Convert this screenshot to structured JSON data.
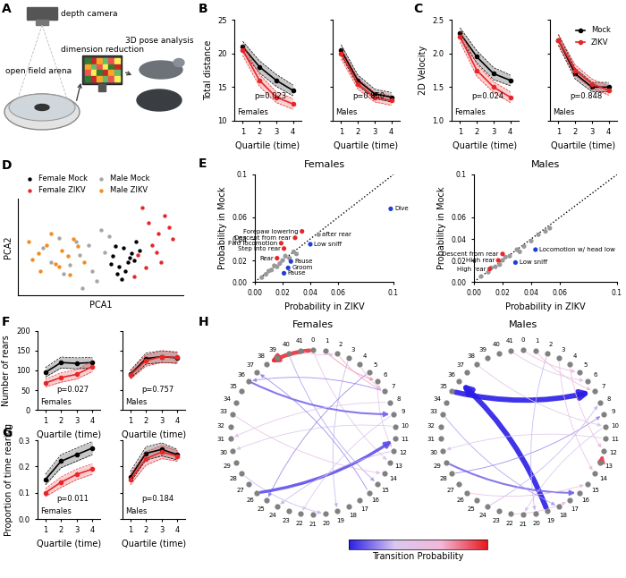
{
  "panel_labels": [
    "A",
    "B",
    "C",
    "D",
    "E",
    "F",
    "G",
    "H"
  ],
  "schematic": {
    "labels": [
      "depth camera",
      "open field arena",
      "dimension reduction",
      "3D pose analysis"
    ]
  },
  "chart_data": [
    {
      "type": "line",
      "ylabel": "Total distance",
      "xlabel": "Quartile (time)",
      "x": [
        1,
        2,
        3,
        4
      ],
      "xlim": [
        0.5,
        4.5
      ],
      "xticks": [
        1,
        2,
        3,
        4
      ],
      "ylim": [
        10,
        25
      ],
      "yticks": [
        10,
        15,
        20,
        25
      ],
      "group_label": "Females",
      "p_value": "p=0.023",
      "series": [
        {
          "color": "#000000",
          "marker": "o",
          "values": [
            21.0,
            18.0,
            16.0,
            14.5
          ],
          "errors": [
            0.8,
            0.9,
            0.9,
            0.8
          ]
        },
        {
          "color": "#e8262a",
          "marker": "o",
          "values": [
            20.5,
            16.0,
            13.5,
            12.5
          ],
          "errors": [
            0.8,
            0.9,
            0.8,
            0.8
          ]
        }
      ]
    },
    {
      "type": "line",
      "xlabel": "Quartile (time)",
      "x": [
        1,
        2,
        3,
        4
      ],
      "xlim": [
        0.5,
        4.5
      ],
      "xticks": [
        1,
        2,
        3,
        4
      ],
      "ylim": [
        10,
        25
      ],
      "yticks": [
        10,
        15,
        20,
        25
      ],
      "tick_labels": "x",
      "group_label": "Males",
      "p_value": "p=0.850",
      "series": [
        {
          "color": "#000000",
          "marker": "o",
          "values": [
            20.5,
            16.0,
            14.0,
            13.5
          ],
          "errors": [
            0.8,
            0.8,
            0.7,
            0.7
          ]
        },
        {
          "color": "#e8262a",
          "marker": "o",
          "values": [
            20.0,
            15.5,
            13.5,
            13.0
          ],
          "errors": [
            0.8,
            0.8,
            0.7,
            0.7
          ]
        }
      ]
    },
    {
      "type": "line",
      "ylabel": "2D Velocity",
      "xlabel": "Quartile (time)",
      "x": [
        1,
        2,
        3,
        4
      ],
      "xlim": [
        0.5,
        4.5
      ],
      "xticks": [
        1,
        2,
        3,
        4
      ],
      "ylim": [
        1.0,
        2.5
      ],
      "yticks": [
        1.0,
        1.5,
        2.0,
        2.5
      ],
      "group_label": "Females",
      "p_value": "p=0.024",
      "series": [
        {
          "color": "#000000",
          "marker": "o",
          "values": [
            2.3,
            1.95,
            1.7,
            1.6
          ],
          "errors": [
            0.08,
            0.09,
            0.09,
            0.08
          ]
        },
        {
          "color": "#e8262a",
          "marker": "o",
          "values": [
            2.25,
            1.75,
            1.5,
            1.35
          ],
          "errors": [
            0.08,
            0.09,
            0.08,
            0.08
          ]
        }
      ]
    },
    {
      "type": "line",
      "xlabel": "Quartile (time)",
      "x": [
        1,
        2,
        3,
        4
      ],
      "xlim": [
        0.5,
        4.5
      ],
      "xticks": [
        1,
        2,
        3,
        4
      ],
      "ylim": [
        1.0,
        2.5
      ],
      "yticks": [
        1.0,
        1.5,
        2.0,
        2.5
      ],
      "tick_labels": "x",
      "group_label": "Males",
      "p_value": "p=0.848",
      "legend": "upper right",
      "series": [
        {
          "name": "Mock",
          "color": "#000000",
          "marker": "o",
          "values": [
            2.2,
            1.7,
            1.5,
            1.5
          ],
          "errors": [
            0.08,
            0.08,
            0.07,
            0.07
          ]
        },
        {
          "name": "ZIKV",
          "color": "#e8262a",
          "marker": "o",
          "values": [
            2.2,
            1.75,
            1.55,
            1.45
          ],
          "errors": [
            0.08,
            0.08,
            0.07,
            0.07
          ]
        }
      ]
    },
    {
      "type": "scatter",
      "xlabel": "PCA1",
      "ylabel": "PCA2",
      "xlim": [
        -4,
        4
      ],
      "ylim": [
        -2.5,
        4.2
      ],
      "tick_labels": false,
      "legend": "lower left",
      "series": [
        {
          "name": "Female Mock",
          "color": "#000000",
          "marker": "o",
          "x": [
            0.6,
            0.9,
            1.1,
            1.3,
            0.8,
            1.5,
            1.0,
            1.7,
            0.7,
            1.2,
            1.4,
            0.5,
            1.9,
            1.6
          ],
          "y": [
            0.2,
            -0.5,
            0.8,
            -0.2,
            -1.0,
            0.4,
            -1.4,
            1.2,
            0.9,
            -0.8,
            0.1,
            -0.3,
            0.6,
            -0.1
          ]
        },
        {
          "name": "Female ZIKV",
          "color": "#e8262a",
          "marker": "o",
          "x": [
            2.0,
            2.3,
            2.8,
            3.1,
            2.5,
            1.8,
            3.3,
            2.2,
            2.7,
            3.5,
            1.6,
            2.9
          ],
          "y": [
            3.6,
            2.5,
            1.8,
            3.0,
            1.0,
            0.3,
            2.2,
            -0.6,
            0.5,
            1.4,
            -1.2,
            -0.2
          ]
        },
        {
          "name": "Male Mock",
          "color": "#a6a6a6",
          "marker": "o",
          "x": [
            -2.8,
            -2.0,
            -1.5,
            -1.0,
            -0.6,
            -0.2,
            0.2,
            -1.8,
            -0.9,
            0.4,
            -2.4,
            -1.2,
            -0.4,
            0.0
          ],
          "y": [
            0.8,
            1.5,
            -0.4,
            0.3,
            1.0,
            -1.5,
            0.5,
            -1.0,
            -2.0,
            1.6,
            -0.2,
            1.2,
            -0.8,
            2.0
          ]
        },
        {
          "name": "Male ZIKV",
          "color": "#f28c1e",
          "marker": "o",
          "x": [
            -3.5,
            -3.0,
            -2.6,
            -2.2,
            -1.9,
            -1.6,
            -1.3,
            -2.9,
            -2.0,
            -1.1,
            -3.3,
            -0.8,
            -2.4,
            -1.5
          ],
          "y": [
            1.2,
            0.4,
            1.0,
            -0.3,
            0.6,
            0.2,
            1.4,
            -0.8,
            -0.5,
            0.9,
            0.0,
            -0.2,
            1.8,
            -1.1
          ]
        }
      ]
    },
    {
      "type": "scatter",
      "title": "Females",
      "xlabel": "Probability in ZIKV",
      "ylabel": "Probability in Mock",
      "xlim": [
        0,
        0.1
      ],
      "ylim": [
        0,
        0.1
      ],
      "xticks": [
        {
          "value": 0,
          "label": "0.00"
        },
        0.02,
        0.04,
        0.06,
        0.1
      ],
      "yticks": [
        {
          "value": 0,
          "label": "0.00"
        },
        0.02,
        0.04,
        0.06,
        0.1
      ],
      "x": [
        0.005,
        0.008,
        0.01,
        0.012,
        0.014,
        0.016,
        0.018,
        0.02,
        0.022,
        0.025,
        0.028,
        0.03,
        0.046,
        0.034,
        0.029,
        0.019,
        0.021,
        0.016,
        0.04,
        0.026,
        0.024,
        0.021,
        0.098
      ],
      "y": [
        0.004,
        0.007,
        0.01,
        0.011,
        0.015,
        0.014,
        0.017,
        0.02,
        0.024,
        0.022,
        0.028,
        0.026,
        0.044,
        0.047,
        0.041,
        0.036,
        0.031,
        0.022,
        0.035,
        0.019,
        0.013,
        0.008,
        0.068
      ],
      "colors": [
        "#999999",
        "#999999",
        "#999999",
        "#999999",
        "#999999",
        "#999999",
        "#999999",
        "#999999",
        "#999999",
        "#999999",
        "#999999",
        "#999999",
        "#999999",
        "#e8262a",
        "#e8262a",
        "#e8262a",
        "#e8262a",
        "#e8262a",
        "#1f3fd8",
        "#1f3fd8",
        "#1f3fd8",
        "#1f3fd8",
        "#1f3fd8"
      ],
      "point_labels": [
        null,
        null,
        null,
        null,
        null,
        null,
        null,
        null,
        null,
        null,
        null,
        null,
        "after rear",
        "Forepaw lowering",
        "Descent from rear",
        "Fwd locomotion",
        "Step into rear",
        "Rear",
        "Low sniff",
        "Pause",
        "Groom",
        "Pause",
        "Dive"
      ]
    },
    {
      "type": "scatter",
      "title": "Males",
      "xlabel": "Probability in ZIKV",
      "ylabel": "Probability in Mock",
      "xlim": [
        0,
        0.1
      ],
      "ylim": [
        0,
        0.1
      ],
      "xticks": [
        {
          "value": 0,
          "label": "0.00"
        },
        0.02,
        0.04,
        0.06,
        0.1
      ],
      "yticks": [
        {
          "value": 0,
          "label": "0.00"
        },
        0.02,
        0.04,
        0.06,
        0.1
      ],
      "x": [
        0.005,
        0.01,
        0.012,
        0.015,
        0.02,
        0.022,
        0.025,
        0.03,
        0.032,
        0.035,
        0.04,
        0.045,
        0.05,
        0.053,
        0.018,
        0.02,
        0.017,
        0.011,
        0.043,
        0.029
      ],
      "y": [
        0.005,
        0.009,
        0.013,
        0.014,
        0.02,
        0.023,
        0.024,
        0.03,
        0.028,
        0.033,
        0.038,
        0.044,
        0.047,
        0.05,
        0.016,
        0.026,
        0.02,
        0.012,
        0.03,
        0.018
      ],
      "colors": [
        "#999999",
        "#999999",
        "#999999",
        "#999999",
        "#999999",
        "#999999",
        "#999999",
        "#999999",
        "#999999",
        "#999999",
        "#999999",
        "#999999",
        "#999999",
        "#999999",
        "#999999",
        "#e8262a",
        "#e8262a",
        "#e8262a",
        "#1f3fd8",
        "#1f3fd8"
      ],
      "point_labels": [
        null,
        null,
        null,
        null,
        null,
        null,
        null,
        null,
        null,
        null,
        null,
        null,
        null,
        null,
        null,
        "Descent from rear",
        "High rear",
        "High rear",
        "Locomotion w/ head low",
        "Low sniff"
      ]
    },
    {
      "type": "line",
      "ylabel": "Number of rears",
      "xlabel": "Quartile (time)",
      "x": [
        1,
        2,
        3,
        4
      ],
      "xlim": [
        0.5,
        4.5
      ],
      "xticks": [
        1,
        2,
        3,
        4
      ],
      "ylim": [
        0,
        200
      ],
      "yticks": [
        0,
        50,
        100,
        150,
        200
      ],
      "group_label": "Females",
      "p_value": "p=0.027",
      "series": [
        {
          "color": "#000000",
          "marker": "o",
          "values": [
            95,
            120,
            118,
            120
          ],
          "errors": [
            12,
            14,
            14,
            13
          ]
        },
        {
          "color": "#e8262a",
          "marker": "o",
          "values": [
            68,
            82,
            90,
            110
          ],
          "errors": [
            10,
            12,
            12,
            13
          ]
        }
      ]
    },
    {
      "type": "line",
      "xlabel": "Quartile (time)",
      "x": [
        1,
        2,
        3,
        4
      ],
      "xlim": [
        0.5,
        4.5
      ],
      "xticks": [
        1,
        2,
        3,
        4
      ],
      "ylim": [
        0,
        200
      ],
      "yticks": [
        0,
        50,
        100,
        150,
        200
      ],
      "tick_labels": "x",
      "group_label": "Males",
      "p_value": "p=0.757",
      "series": [
        {
          "color": "#000000",
          "marker": "o",
          "values": [
            90,
            130,
            135,
            132
          ],
          "errors": [
            10,
            14,
            15,
            14
          ]
        },
        {
          "color": "#e8262a",
          "marker": "o",
          "values": [
            88,
            125,
            135,
            133
          ],
          "errors": [
            10,
            14,
            15,
            14
          ]
        }
      ]
    },
    {
      "type": "line",
      "ylabel": "Proportion of time rearing",
      "xlabel": "Quartile (time)",
      "x": [
        1,
        2,
        3,
        4
      ],
      "xlim": [
        0.5,
        4.5
      ],
      "xticks": [
        1,
        2,
        3,
        4
      ],
      "ylim": [
        0.0,
        0.3
      ],
      "yticks": [
        0.0,
        0.1,
        0.2,
        0.3
      ],
      "group_label": "Females",
      "p_value": "p=0.011",
      "series": [
        {
          "color": "#000000",
          "marker": "o",
          "values": [
            0.15,
            0.22,
            0.245,
            0.27
          ],
          "errors": [
            0.02,
            0.025,
            0.025,
            0.025
          ]
        },
        {
          "color": "#e8262a",
          "marker": "o",
          "values": [
            0.1,
            0.14,
            0.17,
            0.19
          ],
          "errors": [
            0.015,
            0.02,
            0.02,
            0.02
          ]
        }
      ]
    },
    {
      "type": "line",
      "xlabel": "Quartile (time)",
      "x": [
        1,
        2,
        3,
        4
      ],
      "xlim": [
        0.5,
        4.5
      ],
      "xticks": [
        1,
        2,
        3,
        4
      ],
      "ylim": [
        0.0,
        0.3
      ],
      "yticks": [
        0.0,
        0.1,
        0.2,
        0.3
      ],
      "tick_labels": "x",
      "group_label": "Males",
      "p_value": "p=0.184",
      "series": [
        {
          "color": "#000000",
          "marker": "o",
          "values": [
            0.16,
            0.25,
            0.265,
            0.245
          ],
          "errors": [
            0.02,
            0.025,
            0.025,
            0.02
          ]
        },
        {
          "color": "#e8262a",
          "marker": "o",
          "values": [
            0.15,
            0.23,
            0.255,
            0.24
          ],
          "errors": [
            0.02,
            0.025,
            0.025,
            0.02
          ]
        }
      ]
    },
    {
      "type": "network",
      "title": "Females",
      "nodes": [
        0,
        1,
        2,
        3,
        4,
        5,
        6,
        7,
        8,
        9,
        10,
        11,
        12,
        13,
        14,
        15,
        16,
        17,
        18,
        19,
        20,
        21,
        22,
        23,
        24,
        25,
        26,
        27,
        28,
        29,
        30,
        31,
        32,
        33,
        34,
        35,
        36,
        37,
        38,
        39,
        40,
        41
      ],
      "edges": [
        [
          0,
          38,
          0.95
        ],
        [
          1,
          6,
          0.75
        ],
        [
          2,
          7,
          0.7
        ],
        [
          4,
          7,
          0.65
        ],
        [
          0,
          13,
          0.45
        ],
        [
          3,
          19,
          0.3
        ],
        [
          7,
          36,
          0.2
        ],
        [
          6,
          12,
          0.4
        ],
        [
          10,
          30,
          0.35
        ],
        [
          40,
          15,
          0.25
        ],
        [
          36,
          9,
          0.15
        ],
        [
          28,
          20,
          0.3
        ],
        [
          8,
          31,
          0.45
        ],
        [
          5,
          25,
          0.2
        ],
        [
          33,
          14,
          0.5
        ],
        [
          41,
          2,
          0.55
        ],
        [
          26,
          11,
          0.1
        ],
        [
          12,
          24,
          0.3
        ],
        [
          16,
          37,
          0.2
        ],
        [
          9,
          22,
          0.35
        ]
      ]
    },
    {
      "type": "network",
      "title": "Males",
      "nodes": [
        0,
        1,
        2,
        3,
        4,
        5,
        6,
        7,
        8,
        9,
        10,
        11,
        12,
        13,
        14,
        15,
        16,
        17,
        18,
        19,
        20,
        21,
        22,
        23,
        24,
        25,
        26,
        27,
        28,
        29,
        30,
        31,
        32,
        33,
        34,
        35,
        36,
        37,
        38,
        39,
        40,
        41
      ],
      "edges": [
        [
          35,
          7,
          0.0
        ],
        [
          19,
          36,
          0.0
        ],
        [
          13,
          12,
          0.9
        ],
        [
          0,
          5,
          0.6
        ],
        [
          1,
          7,
          0.65
        ],
        [
          28,
          9,
          0.2
        ],
        [
          29,
          16,
          0.15
        ],
        [
          3,
          14,
          0.5
        ],
        [
          10,
          21,
          0.35
        ],
        [
          41,
          6,
          0.45
        ],
        [
          24,
          8,
          0.3
        ],
        [
          26,
          15,
          0.55
        ],
        [
          4,
          12,
          0.6
        ],
        [
          33,
          18,
          0.25
        ],
        [
          11,
          30,
          0.4
        ],
        [
          2,
          20,
          0.3
        ],
        [
          38,
          10,
          0.45
        ],
        [
          22,
          17,
          0.55
        ]
      ]
    }
  ],
  "colorbar": {
    "label": "Transition Probability",
    "range": [
      0,
      1
    ]
  }
}
